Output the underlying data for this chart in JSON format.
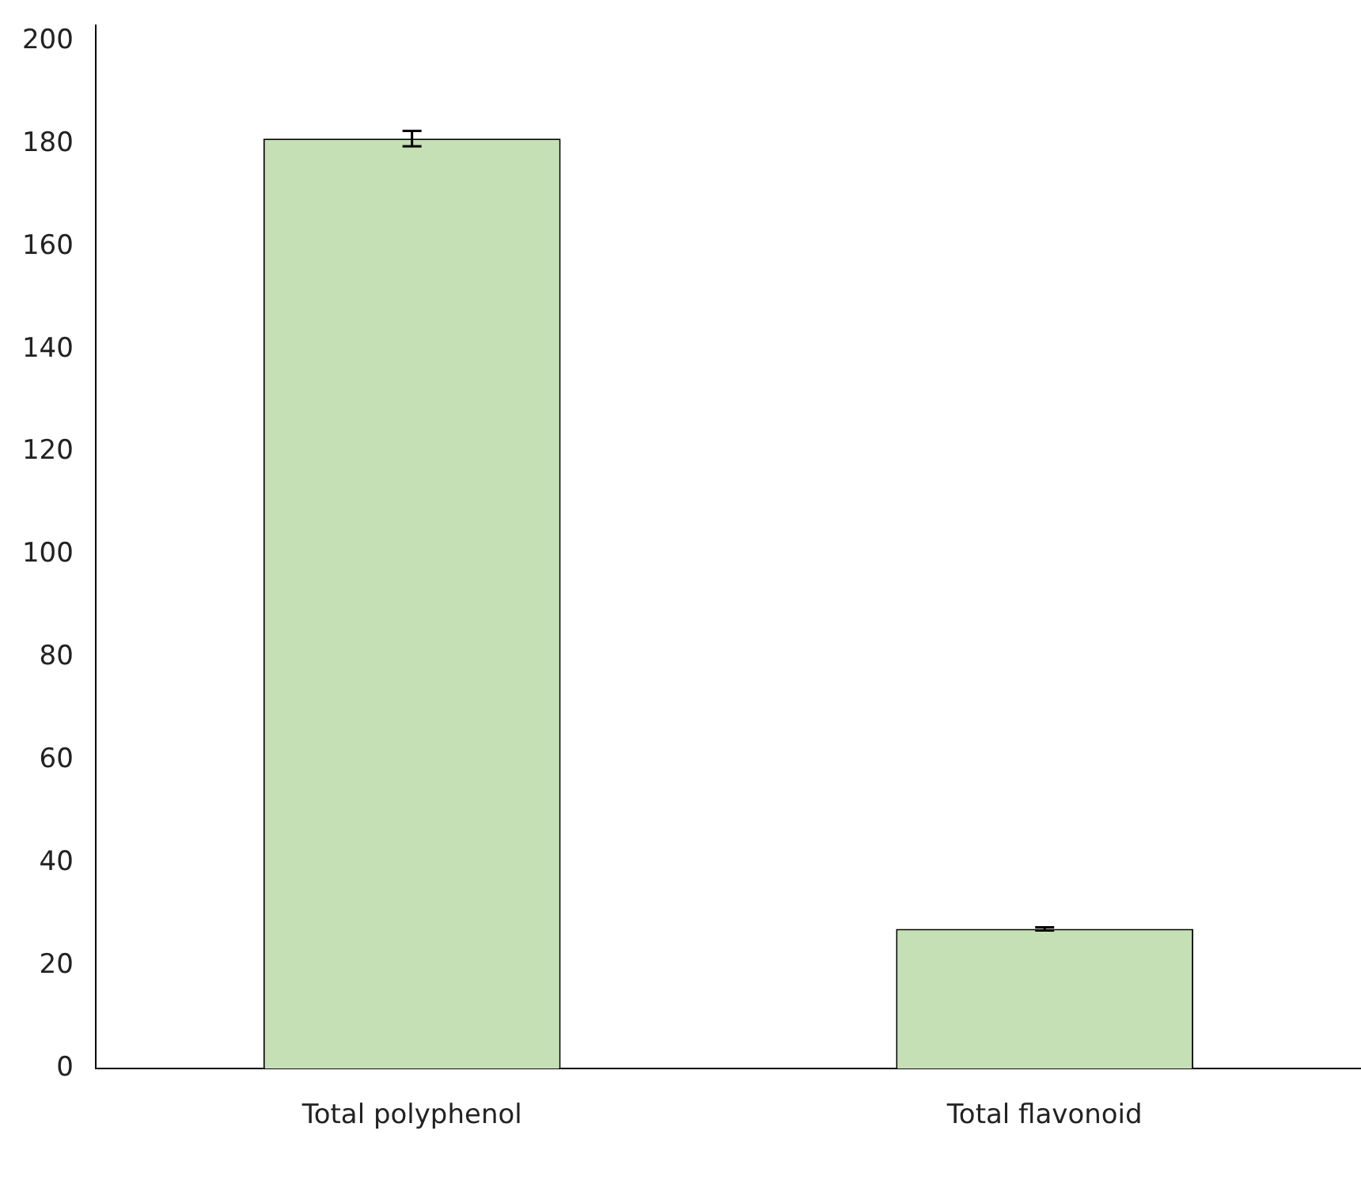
{
  "chart_data": {
    "type": "bar",
    "categories": [
      "Total polyphenol",
      "Total flavonoid"
    ],
    "values": [
      181,
      27.2
    ],
    "errors": [
      1.5,
      0.3
    ],
    "color": "#c5e0b4",
    "ylim": [
      0,
      203
    ],
    "yticks": [
      0,
      20,
      40,
      60,
      80,
      100,
      120,
      140,
      160,
      180,
      200
    ],
    "grid": false,
    "legend": false
  }
}
